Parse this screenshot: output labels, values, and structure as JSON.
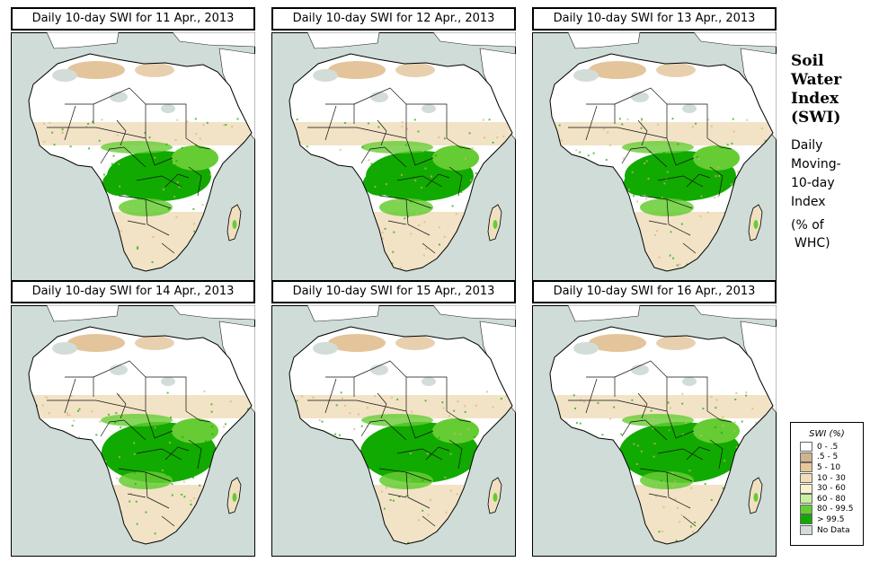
{
  "panels": [
    {
      "title": "Daily 10-day SWI for  11 Apr., 2013"
    },
    {
      "title": "Daily 10-day SWI for  12 Apr., 2013"
    },
    {
      "title": "Daily 10-day SWI for  13 Apr., 2013"
    },
    {
      "title": "Daily 10-day SWI for  14 Apr., 2013"
    },
    {
      "title": "Daily 10-day SWI for  15 Apr., 2013"
    },
    {
      "title": "Daily 10-day SWI for  16 Apr., 2013"
    }
  ],
  "side": {
    "title_lines": [
      "Soil",
      "Water",
      "Index",
      "(SWI)"
    ],
    "desc_lines": [
      "Daily",
      "Moving-",
      "10-day",
      "Index"
    ],
    "unit_lines": [
      "(% of",
      "WHC)"
    ]
  },
  "legend": {
    "title": "SWI (%)",
    "items": [
      {
        "label": "0 - .5",
        "color": "#ffffff"
      },
      {
        "label": ".5 - 5",
        "color": "#d2b48c"
      },
      {
        "label": "5 - 10",
        "color": "#e6c898"
      },
      {
        "label": "10 - 30",
        "color": "#f2ddb8"
      },
      {
        "label": "30 - 60",
        "color": "#f8f2d0"
      },
      {
        "label": "60 - 80",
        "color": "#c8f0a0"
      },
      {
        "label": "80 - 99.5",
        "color": "#66cc33"
      },
      {
        "label": "> 99.5",
        "color": "#11aa00"
      },
      {
        "label": "No Data",
        "color": "#d3ddd8"
      }
    ]
  },
  "colors": {
    "ocean": "#cfdcd7",
    "land": "#ffffff",
    "dry": "#d9b07a",
    "light_dry": "#f1e0c0",
    "wet": "#66cc33",
    "very_wet": "#11aa00",
    "no_data": "#d3ddd8"
  }
}
